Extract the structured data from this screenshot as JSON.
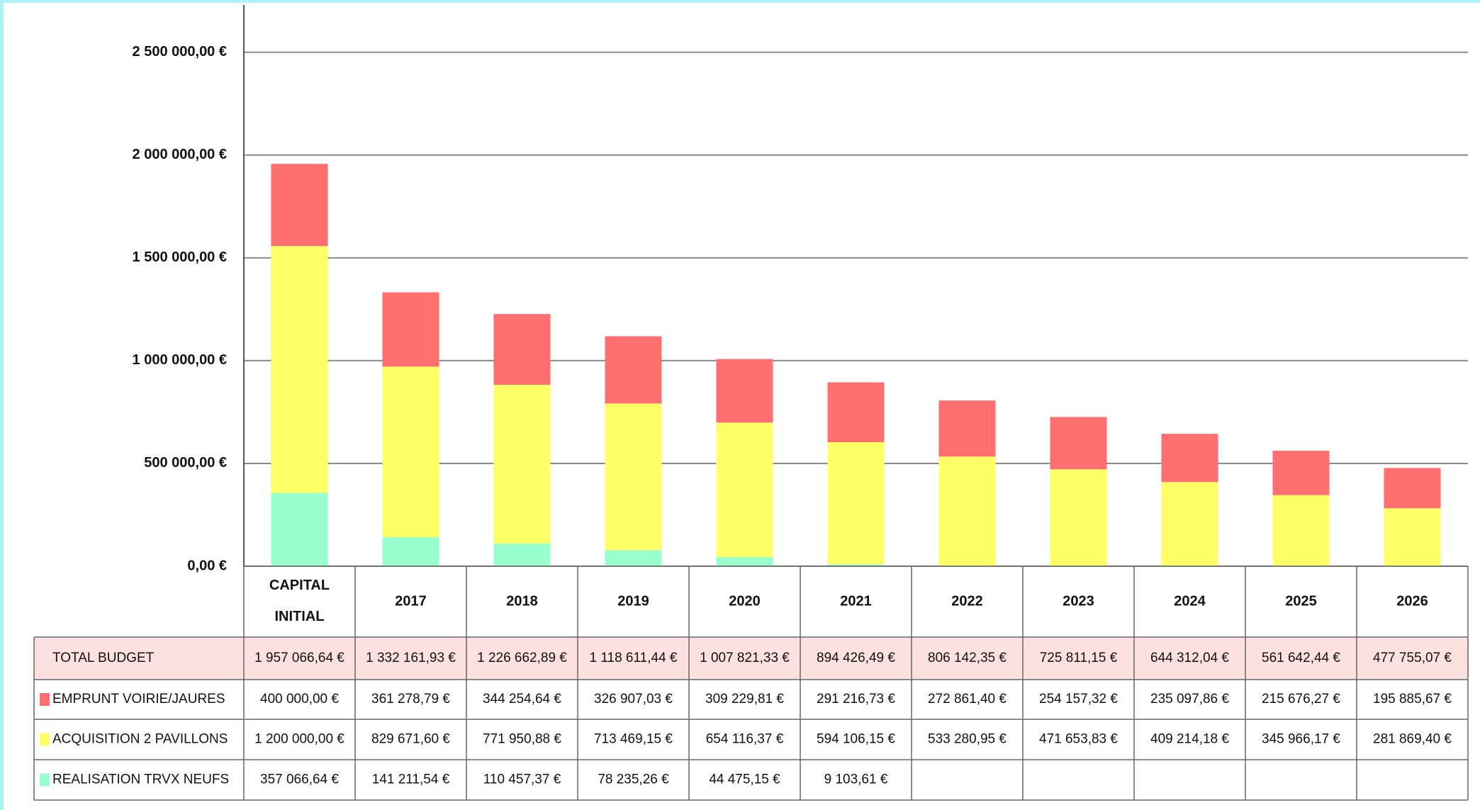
{
  "chart_data": {
    "type": "stacked_bar",
    "categories": [
      "CAPITAL INITIAL",
      "2017",
      "2018",
      "2019",
      "2020",
      "2021",
      "2022",
      "2023",
      "2024",
      "2025",
      "2026"
    ],
    "series": [
      {
        "name": "EMPRUNT VOIRIE/JAURES",
        "color": "#ff6f6f",
        "values": [
          400000.0,
          361278.79,
          344254.64,
          326907.03,
          309229.81,
          291216.73,
          272861.4,
          254157.32,
          235097.86,
          215676.27,
          195885.67
        ],
        "value_labels": [
          "400 000,00 €",
          "361 278,79 €",
          "344 254,64 €",
          "326 907,03 €",
          "309 229,81 €",
          "291 216,73 €",
          "272 861,40 €",
          "254 157,32 €",
          "235 097,86 €",
          "215 676,27 €",
          "195 885,67 €"
        ]
      },
      {
        "name": "ACQUISITION 2 PAVILLONS",
        "color": "#ffff66",
        "values": [
          1200000.0,
          829671.6,
          771950.88,
          713469.15,
          654116.37,
          594106.15,
          533280.95,
          471653.83,
          409214.18,
          345966.17,
          281869.4
        ],
        "value_labels": [
          "1 200 000,00 €",
          "829 671,60 €",
          "771 950,88 €",
          "713 469,15 €",
          "654 116,37 €",
          "594 106,15 €",
          "533 280,95 €",
          "471 653,83 €",
          "409 214,18 €",
          "345 966,17 €",
          "281 869,40 €"
        ]
      },
      {
        "name": "REALISATION TRVX NEUFS",
        "color": "#99ffcc",
        "values": [
          357066.64,
          141211.54,
          110457.37,
          78235.26,
          44475.15,
          9103.61,
          null,
          null,
          null,
          null,
          null
        ],
        "value_labels": [
          "357 066,64 €",
          "141 211,54 €",
          "110 457,37 €",
          "78 235,26 €",
          "44 475,15 €",
          "9 103,61 €",
          null,
          null,
          null,
          null,
          null
        ]
      }
    ],
    "total_row": {
      "name": "TOTAL BUDGET",
      "value_labels": [
        "1 957 066,64 €",
        "1 332 161,93 €",
        "1 226 662,89 €",
        "1 118 611,44 €",
        "1 007 821,33 €",
        "894 426,49 €",
        "806 142,35 €",
        "725 811,15 €",
        "644 312,04 €",
        "561 642,44 €",
        "477 755,07 €"
      ]
    },
    "ylim": [
      0,
      2730000
    ],
    "yticks": [
      {
        "value": 0,
        "label": "0,00 €"
      },
      {
        "value": 500000,
        "label": "500 000,00 €"
      },
      {
        "value": 1000000,
        "label": "1 000 000,00 €"
      },
      {
        "value": 1500000,
        "label": "1 500 000,00 €"
      },
      {
        "value": 2000000,
        "label": "2 000 000,00 €"
      },
      {
        "value": 2500000,
        "label": "2 500 000,00 €"
      }
    ],
    "grid": true
  }
}
